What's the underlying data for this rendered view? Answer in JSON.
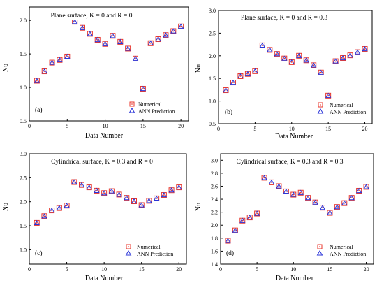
{
  "colors": {
    "numerical": "#e8352b",
    "ann": "#2b35d8",
    "axis": "#000000"
  },
  "chart_data": [
    {
      "type": "scatter",
      "title": "Plane surface, K = 0 and R = 0",
      "panel_label": "(a)",
      "xlabel": "Data Number",
      "ylabel": "Nu",
      "xlim": [
        0,
        21
      ],
      "ylim": [
        0.5,
        2.2
      ],
      "xticks": [
        0,
        5,
        10,
        15,
        20
      ],
      "xtick_labels": [
        "0",
        "5",
        "10",
        "15",
        "20"
      ],
      "yticks": [
        0.5,
        1.0,
        1.5,
        2.0
      ],
      "ytick_labels": [
        "0.5",
        "1.0",
        "1.5",
        "2.0"
      ],
      "legend": {
        "position": "bottom-right",
        "entries": [
          "Numerical",
          "ANN Prediction"
        ]
      },
      "x": [
        1,
        2,
        3,
        4,
        5,
        6,
        7,
        8,
        9,
        10,
        11,
        12,
        13,
        14,
        15,
        16,
        17,
        18,
        19,
        20
      ],
      "series": [
        {
          "name": "Numerical",
          "marker": "square",
          "values": [
            1.1,
            1.24,
            1.37,
            1.41,
            1.46,
            1.98,
            1.89,
            1.8,
            1.71,
            1.65,
            1.77,
            1.68,
            1.58,
            1.43,
            0.98,
            1.66,
            1.72,
            1.78,
            1.84,
            1.91
          ]
        },
        {
          "name": "ANN Prediction",
          "marker": "triangle",
          "values": [
            1.1,
            1.24,
            1.37,
            1.41,
            1.46,
            1.98,
            1.89,
            1.8,
            1.71,
            1.65,
            1.77,
            1.68,
            1.58,
            1.43,
            0.98,
            1.66,
            1.72,
            1.78,
            1.84,
            1.91
          ]
        }
      ]
    },
    {
      "type": "scatter",
      "title": "Plane surface, K = 0 and R = 0.3",
      "panel_label": "(b)",
      "xlabel": "Data Number",
      "ylabel": "Nu",
      "xlim": [
        0,
        21
      ],
      "ylim": [
        0.5,
        3.0
      ],
      "xticks": [
        0,
        5,
        10,
        15,
        20
      ],
      "xtick_labels": [
        "0",
        "5",
        "10",
        "15",
        "20"
      ],
      "yticks": [
        0.5,
        1.0,
        1.5,
        2.0,
        2.5,
        3.0
      ],
      "ytick_labels": [
        "0.5",
        "1.0",
        "1.5",
        "2.0",
        "2.5",
        "3.0"
      ],
      "legend": {
        "position": "bottom-right",
        "entries": [
          "Numerical",
          "ANN Prediction"
        ]
      },
      "x": [
        1,
        2,
        3,
        4,
        5,
        6,
        7,
        8,
        9,
        10,
        11,
        12,
        13,
        14,
        15,
        16,
        17,
        18,
        19,
        20
      ],
      "series": [
        {
          "name": "Numerical",
          "marker": "square",
          "values": [
            1.24,
            1.41,
            1.55,
            1.6,
            1.66,
            2.23,
            2.13,
            2.04,
            1.94,
            1.86,
            2.0,
            1.9,
            1.79,
            1.63,
            1.12,
            1.88,
            1.95,
            2.01,
            2.08,
            2.15
          ]
        },
        {
          "name": "ANN Prediction",
          "marker": "triangle",
          "values": [
            1.24,
            1.41,
            1.55,
            1.6,
            1.66,
            2.23,
            2.13,
            2.04,
            1.94,
            1.86,
            2.0,
            1.9,
            1.79,
            1.63,
            1.12,
            1.88,
            1.95,
            2.01,
            2.08,
            2.15
          ]
        }
      ]
    },
    {
      "type": "scatter",
      "title": "Cylindrical surface, K = 0.3 and R = 0",
      "panel_label": "(c)",
      "xlabel": "Data Number",
      "ylabel": "Nu",
      "xlim": [
        0,
        21
      ],
      "ylim": [
        0.7,
        3.0
      ],
      "xticks": [
        0,
        5,
        10,
        15,
        20
      ],
      "xtick_labels": [
        "0",
        "5",
        "10",
        "15",
        "20"
      ],
      "yticks": [
        1.0,
        1.5,
        2.0,
        2.5,
        3.0
      ],
      "ytick_labels": [
        "1.0",
        "1.5",
        "2.0",
        "2.5",
        "3.0"
      ],
      "legend": {
        "position": "bottom-right",
        "entries": [
          "Numerical",
          "ANN Prediction"
        ]
      },
      "x": [
        1,
        2,
        3,
        4,
        5,
        6,
        7,
        8,
        9,
        10,
        11,
        12,
        13,
        14,
        15,
        16,
        17,
        18,
        19,
        20
      ],
      "series": [
        {
          "name": "Numerical",
          "marker": "square",
          "values": [
            1.56,
            1.7,
            1.82,
            1.87,
            1.92,
            2.41,
            2.35,
            2.3,
            2.23,
            2.18,
            2.22,
            2.15,
            2.08,
            2.01,
            1.93,
            2.02,
            2.07,
            2.14,
            2.24,
            2.3
          ]
        },
        {
          "name": "ANN Prediction",
          "marker": "triangle",
          "values": [
            1.56,
            1.7,
            1.82,
            1.87,
            1.92,
            2.41,
            2.35,
            2.3,
            2.23,
            2.18,
            2.22,
            2.15,
            2.08,
            2.01,
            1.93,
            2.02,
            2.07,
            2.14,
            2.24,
            2.3
          ]
        }
      ]
    },
    {
      "type": "scatter",
      "title": "Cylindrical surface, K = 0.3 and R = 0.3",
      "panel_label": "(d)",
      "xlabel": "Data Number",
      "ylabel": "Nu",
      "xlim": [
        0,
        21
      ],
      "ylim": [
        1.4,
        3.1
      ],
      "xticks": [
        0,
        5,
        10,
        15,
        20
      ],
      "xtick_labels": [
        "0",
        "5",
        "10",
        "15",
        "20"
      ],
      "yticks": [
        1.4,
        1.6,
        1.8,
        2.0,
        2.2,
        2.4,
        2.6,
        2.8,
        3.0
      ],
      "ytick_labels": [
        "1.4",
        "1.6",
        "1.8",
        "2.0",
        "2.2",
        "2.4",
        "2.6",
        "2.8",
        "3.0"
      ],
      "legend": {
        "position": "bottom-right",
        "entries": [
          "Numerical",
          "ANN Prediction"
        ]
      },
      "x": [
        1,
        2,
        3,
        4,
        5,
        6,
        7,
        8,
        9,
        10,
        11,
        12,
        13,
        14,
        15,
        16,
        17,
        18,
        19,
        20
      ],
      "series": [
        {
          "name": "Numerical",
          "marker": "square",
          "values": [
            1.76,
            1.92,
            2.07,
            2.12,
            2.18,
            2.73,
            2.66,
            2.6,
            2.52,
            2.47,
            2.5,
            2.42,
            2.35,
            2.27,
            2.19,
            2.28,
            2.34,
            2.42,
            2.53,
            2.59
          ]
        },
        {
          "name": "ANN Prediction",
          "marker": "triangle",
          "values": [
            1.76,
            1.92,
            2.07,
            2.12,
            2.18,
            2.73,
            2.66,
            2.6,
            2.52,
            2.47,
            2.5,
            2.42,
            2.35,
            2.27,
            2.19,
            2.28,
            2.34,
            2.42,
            2.53,
            2.59
          ]
        }
      ]
    }
  ]
}
